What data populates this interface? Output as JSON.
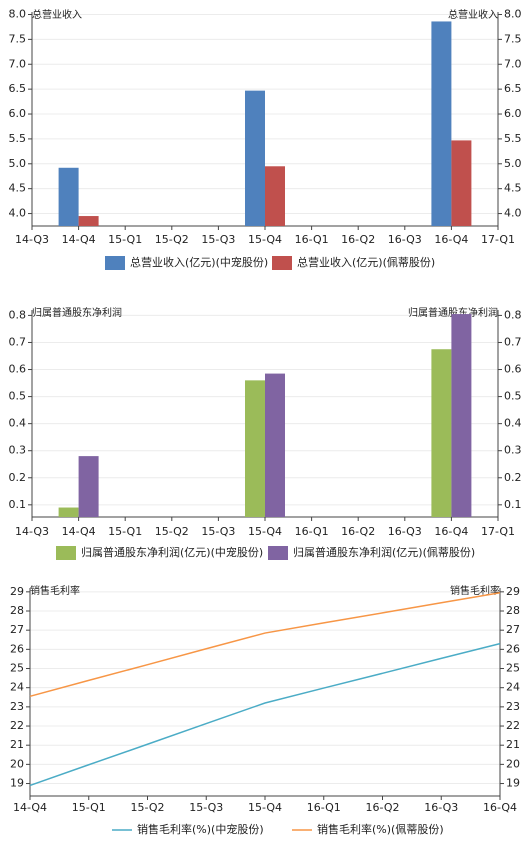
{
  "chart_data": [
    {
      "type": "bar",
      "y_label": "总营业收入",
      "categories": [
        "14-Q3",
        "14-Q4",
        "15-Q1",
        "15-Q2",
        "15-Q3",
        "15-Q4",
        "16-Q1",
        "16-Q2",
        "16-Q3",
        "16-Q4",
        "17-Q1"
      ],
      "series": [
        {
          "name": "总营业收入(亿元)(中宠股份)",
          "color": "#4f81bd",
          "values": [
            null,
            4.92,
            null,
            null,
            null,
            6.47,
            null,
            null,
            null,
            7.86,
            null
          ]
        },
        {
          "name": "总营业收入(亿元)(佩蒂股份)",
          "color": "#c0504d",
          "values": [
            null,
            3.95,
            null,
            null,
            null,
            4.95,
            null,
            null,
            null,
            5.47,
            null
          ]
        }
      ],
      "ylim": [
        3.75,
        8.05
      ],
      "yticks": [
        {
          "value": 4.0,
          "label": "4.0"
        },
        4.5,
        {
          "value": 5.0,
          "label": "5.0"
        },
        5.5,
        {
          "value": 6.0,
          "label": "6.0"
        },
        6.5,
        {
          "value": 7.0,
          "label": "7.0"
        },
        7.5,
        {
          "value": 8.0,
          "label": "8.0"
        }
      ],
      "grid": true
    },
    {
      "type": "bar",
      "y_label": "归属普通股东净利润",
      "categories": [
        "14-Q3",
        "14-Q4",
        "15-Q1",
        "15-Q2",
        "15-Q3",
        "15-Q4",
        "16-Q1",
        "16-Q2",
        "16-Q3",
        "16-Q4",
        "17-Q1"
      ],
      "series": [
        {
          "name": "归属普通股东净利润(亿元)(中宠股份)",
          "color": "#9bbb59",
          "values": [
            null,
            0.09,
            null,
            null,
            null,
            0.56,
            null,
            null,
            null,
            0.675,
            null
          ]
        },
        {
          "name": "归属普通股东净利润(亿元)(佩蒂股份)",
          "color": "#8064a2",
          "values": [
            null,
            0.28,
            null,
            null,
            null,
            0.585,
            null,
            null,
            null,
            0.805,
            null
          ]
        }
      ],
      "ylim": [
        0.055,
        0.82
      ],
      "yticks": [
        0.1,
        0.2,
        0.3,
        0.4,
        0.5,
        0.6,
        0.7,
        0.8
      ],
      "grid": true
    },
    {
      "type": "line",
      "y_label": "销售毛利率",
      "categories": [
        "14-Q4",
        "15-Q1",
        "15-Q2",
        "15-Q3",
        "15-Q4",
        "16-Q1",
        "16-Q2",
        "16-Q3",
        "16-Q4"
      ],
      "series": [
        {
          "name": "销售毛利率(%)(中宠股份)",
          "color": "#4bacc6",
          "values": [
            18.9,
            19.98,
            21.05,
            22.13,
            23.2,
            23.98,
            24.75,
            25.53,
            26.3
          ]
        },
        {
          "name": "销售毛利率(%)(佩蒂股份)",
          "color": "#f79646",
          "values": [
            23.55,
            24.38,
            25.2,
            26.03,
            26.85,
            27.38,
            27.9,
            28.43,
            28.95
          ]
        }
      ],
      "ylim": [
        18.35,
        29.2
      ],
      "yticks": [
        19,
        20,
        21,
        22,
        23,
        24,
        25,
        26,
        27,
        28,
        29
      ],
      "grid": true
    }
  ]
}
